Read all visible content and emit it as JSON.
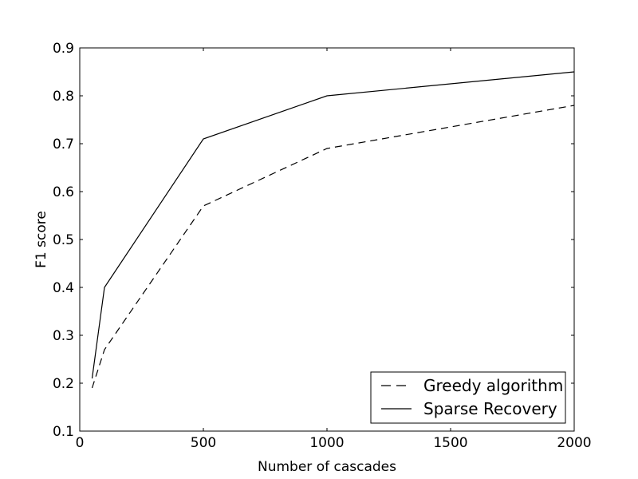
{
  "chart_data": {
    "type": "line",
    "title": "",
    "xlabel": "Number of cascades",
    "ylabel": "F1 score",
    "xlim": [
      0,
      2000
    ],
    "ylim": [
      0.1,
      0.9
    ],
    "xticks": [
      0,
      500,
      1000,
      1500,
      2000
    ],
    "xtick_labels": [
      "0",
      "500",
      "1000",
      "1500",
      "2000"
    ],
    "yticks": [
      0.1,
      0.2,
      0.3,
      0.4,
      0.5,
      0.6,
      0.7,
      0.8,
      0.9
    ],
    "ytick_labels": [
      "0.1",
      "0.2",
      "0.3",
      "0.4",
      "0.5",
      "0.6",
      "0.7",
      "0.8",
      "0.9"
    ],
    "grid": false,
    "legend_position": "lower right",
    "x": [
      50,
      100,
      500,
      1000,
      2000
    ],
    "series": [
      {
        "name": "Greedy algorithm",
        "style": "dashed",
        "color": "#000000",
        "values": [
          0.19,
          0.27,
          0.57,
          0.69,
          0.78
        ]
      },
      {
        "name": "Sparse Recovery",
        "style": "solid",
        "color": "#000000",
        "values": [
          0.21,
          0.4,
          0.71,
          0.8,
          0.85
        ]
      }
    ]
  },
  "colors": {
    "background": "#ffffff",
    "axis": "#000000",
    "text": "#000000"
  }
}
